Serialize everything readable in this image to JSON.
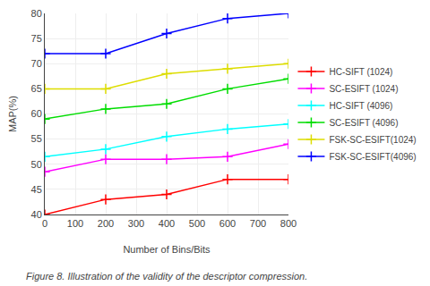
{
  "chart_data": {
    "type": "line",
    "x": [
      0,
      200,
      400,
      600,
      800
    ],
    "series": [
      {
        "name": "HC-SIFT (1024)",
        "color": "#ff0000",
        "marker": "plus",
        "values": [
          40.0,
          43.0,
          44.0,
          47.0,
          47.0
        ]
      },
      {
        "name": "SC-ESIFT (1024)",
        "color": "#ff00ff",
        "marker": "plus",
        "values": [
          48.5,
          51.0,
          51.0,
          51.5,
          54.0
        ]
      },
      {
        "name": "HC-SIFT (4096)",
        "color": "#00ffff",
        "marker": "plus",
        "values": [
          51.5,
          53.0,
          55.5,
          57.0,
          58.0
        ]
      },
      {
        "name": "SC-ESIFT (4096)",
        "color": "#00dd00",
        "marker": "plus",
        "values": [
          59.0,
          61.0,
          62.0,
          65.0,
          67.0
        ]
      },
      {
        "name": "FSK-SC-ESIFT(1024)",
        "color": "#dddd00",
        "marker": "plus",
        "values": [
          65.0,
          65.0,
          68.0,
          69.0,
          70.0
        ]
      },
      {
        "name": "FSK-SC-ESIFT(4096)",
        "color": "#0000ff",
        "marker": "plus",
        "values": [
          72.0,
          72.0,
          76.0,
          79.0,
          80.0
        ]
      }
    ],
    "xlabel": "Number of Bins/Bits",
    "ylabel": "MAP(%)",
    "xlim": [
      0,
      800
    ],
    "ylim": [
      40,
      80
    ],
    "xticks": [
      0,
      100,
      200,
      300,
      400,
      500,
      600,
      700,
      800
    ],
    "yticks": [
      40,
      45,
      50,
      55,
      60,
      65,
      70,
      75,
      80
    ],
    "annotations": [
      "Figure 8. Illustration of the validity of the descriptor compression."
    ],
    "grid": true,
    "legend": "right"
  }
}
